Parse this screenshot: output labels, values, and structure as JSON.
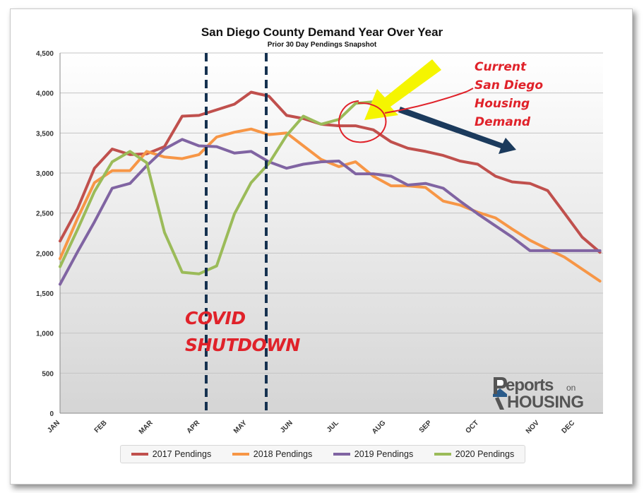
{
  "chart_data": {
    "type": "line",
    "title": "San Diego County Demand Year Over Year",
    "subtitle": "Prior 30 Day Pendings Snapshot",
    "ylim": [
      0,
      4500
    ],
    "yticks": [
      0,
      500,
      1000,
      1500,
      2000,
      2500,
      3000,
      3500,
      4000,
      4500
    ],
    "ytick_labels": [
      "0",
      "500",
      "1,000",
      "1,500",
      "2,000",
      "2,500",
      "3,000",
      "3,500",
      "4,000",
      "4,500"
    ],
    "xlim": [
      1,
      53
    ],
    "month_ticks": [
      {
        "label": "JAN",
        "week": 1
      },
      {
        "label": "FEB",
        "week": 5.5
      },
      {
        "label": "MAR",
        "week": 9.9
      },
      {
        "label": "APR",
        "week": 14.4
      },
      {
        "label": "MAY",
        "week": 18.9
      },
      {
        "label": "JUN",
        "week": 23.3
      },
      {
        "label": "JUL",
        "week": 27.7
      },
      {
        "label": "AUG",
        "week": 32.2
      },
      {
        "label": "SEP",
        "week": 36.6
      },
      {
        "label": "OCT",
        "week": 41.1
      },
      {
        "label": "NOV",
        "week": 46.9
      },
      {
        "label": "DEC",
        "week": 50.3
      }
    ],
    "grid": true,
    "legend_position": "bottom",
    "series": [
      {
        "name": "2017 Pendings",
        "color": "#c0504d",
        "x": [
          1,
          2.7,
          4.3,
          6,
          7.7,
          9.3,
          11,
          12.7,
          14.3,
          16,
          17.7,
          19.3,
          21,
          22.7,
          24.3,
          26,
          27.7,
          29.3,
          31,
          32.7,
          34.3,
          36,
          37.7,
          39.3,
          41,
          42.7,
          44.3,
          46,
          47.7,
          49.3,
          51,
          52.7
        ],
        "y": [
          2150,
          2560,
          3060,
          3300,
          3230,
          3240,
          3330,
          3710,
          3720,
          3790,
          3860,
          4010,
          3960,
          3720,
          3680,
          3610,
          3590,
          3590,
          3540,
          3390,
          3310,
          3270,
          3220,
          3150,
          3110,
          2960,
          2890,
          2870,
          2780,
          2500,
          2200,
          2010
        ]
      },
      {
        "name": "2018 Pendings",
        "color": "#f79646",
        "x": [
          1,
          2.7,
          4.3,
          6,
          7.7,
          9.3,
          11,
          12.7,
          14.3,
          16,
          17.7,
          19.3,
          21,
          22.7,
          24.3,
          26,
          27.7,
          29.3,
          31,
          32.7,
          34.3,
          36,
          37.7,
          39.3,
          41,
          42.7,
          44.3,
          46,
          47.7,
          49.3,
          51,
          52.7
        ],
        "y": [
          1930,
          2440,
          2880,
          3030,
          3030,
          3270,
          3200,
          3180,
          3230,
          3450,
          3510,
          3550,
          3480,
          3500,
          3340,
          3170,
          3080,
          3140,
          2960,
          2840,
          2840,
          2820,
          2650,
          2600,
          2510,
          2440,
          2300,
          2160,
          2050,
          1950,
          1800,
          1650
        ]
      },
      {
        "name": "2019 Pendings",
        "color": "#8064a2",
        "x": [
          1,
          2.7,
          4.3,
          6,
          7.7,
          9.3,
          11,
          12.7,
          14.3,
          16,
          17.7,
          19.3,
          21,
          22.7,
          24.3,
          26,
          27.7,
          29.3,
          31,
          32.7,
          34.3,
          36,
          37.7,
          39.3,
          41,
          42.7,
          44.3,
          46,
          47.7,
          49.3,
          51,
          52.7
        ],
        "y": [
          1610,
          2020,
          2390,
          2810,
          2870,
          3090,
          3300,
          3420,
          3340,
          3330,
          3250,
          3270,
          3140,
          3060,
          3110,
          3140,
          3150,
          2990,
          2990,
          2960,
          2850,
          2870,
          2810,
          2650,
          2490,
          2340,
          2200,
          2030,
          2030,
          2030,
          2030,
          2030
        ]
      },
      {
        "name": "2020 Pendings",
        "color": "#9bbb59",
        "x": [
          1,
          2.7,
          4.3,
          6,
          7.7,
          9.3,
          11,
          12.7,
          14.3,
          16,
          17.7,
          19.3,
          21,
          22.7,
          24.3,
          26,
          27.7,
          29.3,
          31
        ],
        "y": [
          1830,
          2300,
          2770,
          3140,
          3270,
          3130,
          2260,
          1760,
          1740,
          1840,
          2490,
          2880,
          3120,
          3470,
          3710,
          3610,
          3670,
          3870,
          3890
        ]
      }
    ]
  },
  "annotations": {
    "covid_line1": "COVID",
    "covid_line2": "SHUTDOWN",
    "current_line1": "Current",
    "current_line2": "San Diego",
    "current_line3": "Housing",
    "current_line4": "Demand",
    "colors": {
      "red": "#e0222a",
      "yellow": "#f5f500",
      "navy": "#1b3a5c",
      "dash": "#163250"
    }
  },
  "logo": {
    "text_reports": "eports",
    "text_on": "on",
    "text_housing": "HOUSING"
  }
}
